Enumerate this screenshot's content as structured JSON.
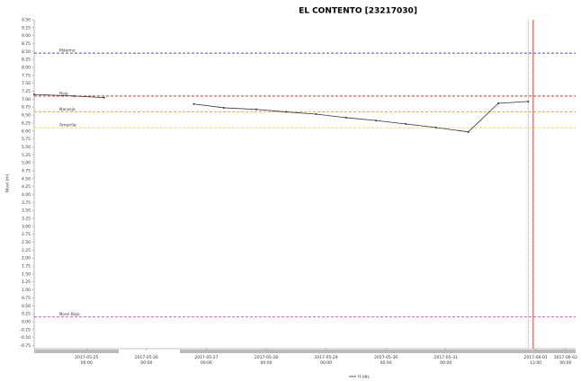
{
  "chart_data": {
    "type": "line",
    "title": "EL CONTENTO [23217030]",
    "y_label": "Nivel (m)",
    "x": [
      "2017-05-24 03:00",
      "2017-05-24 19:00",
      "2017-05-25 07:00",
      null,
      "2017-05-26 19:00",
      "2017-05-27 07:00",
      "2017-05-27 20:00",
      "2017-05-28 08:00",
      "2017-05-28 20:00",
      "2017-05-29 08:00",
      "2017-05-29 20:00",
      "2017-05-30 08:00",
      "2017-05-30 20:00",
      "2017-05-31 09:00",
      "2017-05-31 21:00",
      "2017-06-01 09:00"
    ],
    "series": [
      {
        "name": "H.obs",
        "color": "#333333",
        "values": [
          7.15,
          7.1,
          7.05,
          null,
          6.85,
          6.73,
          6.68,
          6.6,
          6.53,
          6.42,
          6.33,
          6.22,
          6.11,
          5.97,
          6.87,
          6.93
        ]
      }
    ],
    "thresholds": [
      {
        "name": "Máximo",
        "value": 8.45,
        "color": "#5555aa"
      },
      {
        "name": "Roja",
        "value": 7.1,
        "color": "#e03030"
      },
      {
        "name": "Naranja",
        "value": 6.6,
        "color": "#f0a030"
      },
      {
        "name": "Amarilla",
        "value": 6.1,
        "color": "#e8d840"
      },
      {
        "name": "Nivel Bajo",
        "value": 0.15,
        "color": "#d040d0"
      }
    ],
    "vlines": [
      {
        "x": "2017-06-01 09:00",
        "color": "#999999",
        "style": "dotted"
      },
      {
        "x": "2017-06-01 11:00",
        "color": "#ff3030",
        "style": "solid"
      }
    ],
    "xlim": [
      "2017-05-24 03:00",
      "2017-06-02 04:00"
    ],
    "xticks": [
      "2017-05-25 00:00",
      "2017-05-26 00:00",
      "2017-05-27 00:00",
      "2017-05-28 00:00",
      "2017-05-29 00:00",
      "2017-05-30 00:00",
      "2017-05-31 00:00",
      "2017-06-01 12:00",
      "2017-06-02 00:00"
    ],
    "ylim": [
      -0.85,
      9.5
    ],
    "yticks": [
      -0.75,
      {
        "value": -0.5,
        "label": "-0.50"
      },
      -0.25,
      {
        "value": 0,
        "label": "0.00"
      },
      0.25,
      {
        "value": 0.5,
        "label": "0.50"
      },
      0.75,
      {
        "value": 1,
        "label": "1.00"
      },
      1.25,
      {
        "value": 1.5,
        "label": "1.50"
      },
      1.75,
      {
        "value": 2,
        "label": "2.00"
      },
      2.25,
      {
        "value": 2.5,
        "label": "2.50"
      },
      2.75,
      {
        "value": 3,
        "label": "3.00"
      },
      3.25,
      {
        "value": 3.5,
        "label": "3.50"
      },
      3.75,
      {
        "value": 4,
        "label": "4.00"
      },
      4.25,
      {
        "value": 4.5,
        "label": "4.50"
      },
      4.75,
      {
        "value": 5,
        "label": "5.00"
      },
      5.25,
      {
        "value": 5.5,
        "label": "5.50"
      },
      5.75,
      {
        "value": 6,
        "label": "6.00"
      },
      6.25,
      {
        "value": 6.5,
        "label": "6.50"
      },
      6.75,
      {
        "value": 7,
        "label": "7.00"
      },
      7.25,
      {
        "value": 7.5,
        "label": "7.50"
      },
      7.75,
      {
        "value": 8,
        "label": "8.00"
      },
      8.25,
      {
        "value": 8.5,
        "label": "8.50"
      },
      8.75,
      {
        "value": 9,
        "label": "9.00"
      },
      9.25,
      {
        "value": 9.5,
        "label": "9.50"
      }
    ]
  }
}
